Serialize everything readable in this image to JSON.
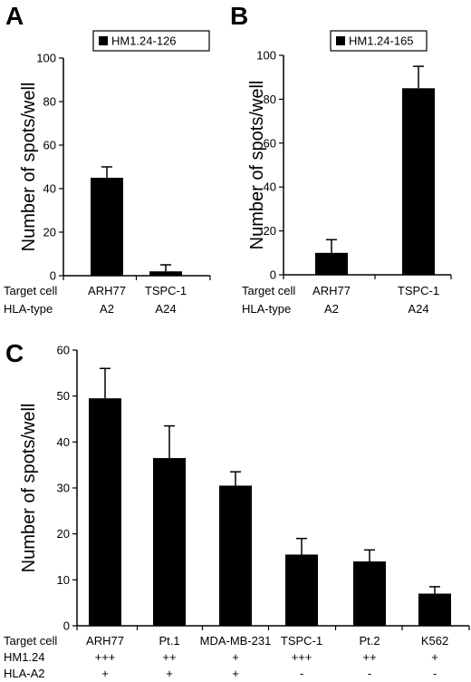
{
  "chart_data": [
    {
      "type": "bar",
      "panel": "A",
      "legend": "HM1.24-126",
      "legend_position": "top-right",
      "ylabel": "Number of spots/well",
      "ylim": [
        0,
        100
      ],
      "yticks": [
        0,
        20,
        40,
        60,
        80,
        100
      ],
      "categories": [
        "ARH77",
        "TSPC-1"
      ],
      "values": [
        45,
        2
      ],
      "errors": [
        5,
        3
      ],
      "row_labels": [
        {
          "label": "Target cell",
          "values": [
            "ARH77",
            "TSPC-1"
          ]
        },
        {
          "label": "HLA-type",
          "values": [
            "A2",
            "A24"
          ]
        }
      ]
    },
    {
      "type": "bar",
      "panel": "B",
      "legend": "HM1.24-165",
      "legend_position": "top-left",
      "ylabel": "Number of spots/well",
      "ylim": [
        0,
        100
      ],
      "yticks": [
        0,
        20,
        40,
        60,
        80,
        100
      ],
      "categories": [
        "ARH77",
        "TSPC-1"
      ],
      "values": [
        10,
        85
      ],
      "errors": [
        6,
        10
      ],
      "row_labels": [
        {
          "label": "Target cell",
          "values": [
            "ARH77",
            "TSPC-1"
          ]
        },
        {
          "label": "HLA-type",
          "values": [
            "A2",
            "A24"
          ]
        }
      ]
    },
    {
      "type": "bar",
      "panel": "C",
      "ylabel": "Number of spots/well",
      "ylim": [
        0,
        60
      ],
      "yticks": [
        0,
        10,
        20,
        30,
        40,
        50,
        60
      ],
      "categories": [
        "ARH77",
        "Pt.1",
        "MDA-MB-231",
        "TSPC-1",
        "Pt.2",
        "K562"
      ],
      "values": [
        49.5,
        36.5,
        30.5,
        15.5,
        14,
        7
      ],
      "errors": [
        6.5,
        7,
        3,
        3.5,
        2.5,
        1.5
      ],
      "row_labels": [
        {
          "label": "Target cell",
          "values": [
            "ARH77",
            "Pt.1",
            "MDA-MB-231",
            "TSPC-1",
            "Pt.2",
            "K562"
          ]
        },
        {
          "label": "HM1.24",
          "values": [
            "+++",
            "++",
            "+",
            "+++",
            "++",
            "+"
          ]
        },
        {
          "label": "HLA-A2",
          "values": [
            "+",
            "+",
            "+",
            "-",
            "-",
            "-"
          ]
        }
      ]
    }
  ]
}
